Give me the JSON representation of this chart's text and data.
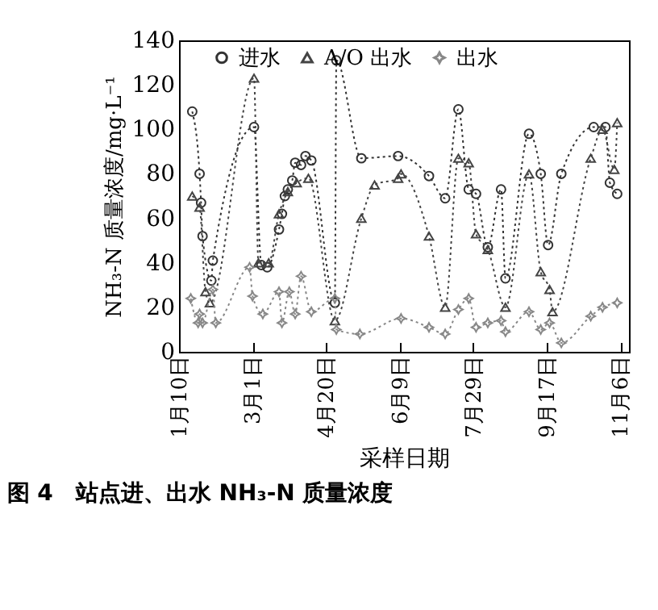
{
  "chart_data": {
    "type": "line",
    "xlabel": "采样日期",
    "ylabel": "NH₃-N 质量浓度/mg·L⁻¹",
    "annotations": [
      "图 4　站点进、出水 NH₃-N 质量浓度"
    ],
    "xlim": [
      "--01-10",
      "--11-12"
    ],
    "xticks": [
      {
        "value": "--01-10",
        "label": "1月10日"
      },
      {
        "value": "--03-01",
        "label": "3月1日"
      },
      {
        "value": "--04-20",
        "label": "4月20日"
      },
      {
        "value": "--06-09",
        "label": "6月9日"
      },
      {
        "value": "--07-29",
        "label": "7月29日"
      },
      {
        "value": "--09-17",
        "label": "9月17日"
      },
      {
        "value": "--11-06",
        "label": "11月6日"
      }
    ],
    "ylim": [
      0,
      140
    ],
    "yticks": [
      0,
      20,
      40,
      60,
      80,
      100,
      120,
      140
    ],
    "grid": false,
    "legend": "top",
    "line_style": "dotted",
    "series": [
      {
        "name": "进水",
        "color": "#333333",
        "marker": "circle",
        "x": [
          "--01-19",
          "--01-24",
          "--01-25",
          "--01-26",
          "--02-01",
          "--02-02",
          "--03-02",
          "--03-07",
          "--03-11",
          "--03-19",
          "--03-21",
          "--03-23",
          "--03-25",
          "--03-28",
          "--03-30",
          "--04-03",
          "--04-06",
          "--04-10",
          "--04-26",
          "--04-27",
          "--05-14",
          "--06-08",
          "--06-29",
          "--07-10",
          "--07-19",
          "--07-26",
          "--07-31",
          "--08-08",
          "--08-17",
          "--08-20",
          "--09-05",
          "--09-13",
          "--09-18",
          "--09-27",
          "--10-19",
          "--10-27",
          "--10-30",
          "--11-04"
        ],
        "values": [
          108,
          80,
          67,
          52,
          32,
          41,
          101,
          39,
          38,
          55,
          62,
          70,
          73,
          77,
          85,
          84,
          88,
          86,
          22,
          131,
          87,
          88,
          79,
          69,
          109,
          73,
          71,
          47,
          73,
          33,
          98,
          80,
          48,
          80,
          101,
          101,
          76,
          71
        ]
      },
      {
        "name": "A/O 出水",
        "color": "#444444",
        "marker": "triangle",
        "x": [
          "--01-19",
          "--01-24",
          "--01-28",
          "--01-31",
          "--03-02",
          "--03-05",
          "--03-12",
          "--03-19",
          "--03-25",
          "--03-31",
          "--04-08",
          "--04-26",
          "--05-14",
          "--05-23",
          "--06-08",
          "--06-10",
          "--06-29",
          "--07-10",
          "--07-19",
          "--07-26",
          "--07-31",
          "--08-08",
          "--08-20",
          "--09-05",
          "--09-13",
          "--09-19",
          "--09-21",
          "--10-17",
          "--10-25",
          "--11-02",
          "--11-04"
        ],
        "values": [
          70,
          65,
          27,
          22,
          123,
          40,
          40,
          62,
          72,
          76,
          78,
          14,
          60,
          75,
          78,
          80,
          52,
          20,
          87,
          85,
          53,
          46,
          20,
          80,
          36,
          28,
          18,
          87,
          100,
          82,
          103
        ]
      },
      {
        "name": "出水",
        "color": "#888888",
        "marker": "star",
        "x": [
          "--01-18",
          "--01-23",
          "--01-24",
          "--01-26",
          "--02-02",
          "--02-04",
          "--02-27",
          "--03-01",
          "--03-08",
          "--03-19",
          "--03-21",
          "--03-26",
          "--03-30",
          "--04-03",
          "--04-10",
          "--04-26",
          "--04-27",
          "--05-13",
          "--06-10",
          "--06-29",
          "--07-10",
          "--07-19",
          "--07-26",
          "--07-31",
          "--08-08",
          "--08-17",
          "--08-20",
          "--09-05",
          "--09-13",
          "--09-19",
          "--09-27",
          "--10-17",
          "--10-25",
          "--11-04"
        ],
        "values": [
          24,
          13,
          17,
          13,
          28,
          13,
          38,
          25,
          17,
          27,
          13,
          27,
          17,
          34,
          18,
          24,
          10,
          8,
          15,
          11,
          8,
          19,
          24,
          11,
          13,
          14,
          9,
          18,
          10,
          13,
          4,
          16,
          20,
          22
        ]
      }
    ]
  }
}
